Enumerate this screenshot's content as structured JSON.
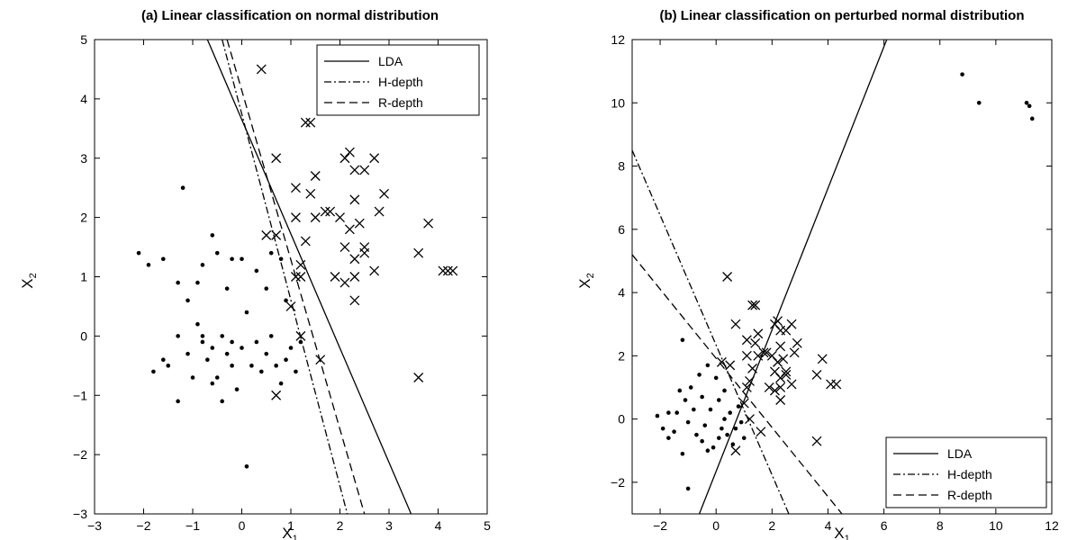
{
  "chart_data": [
    {
      "type": "scatter",
      "title": "(a) Linear classification on normal distribution",
      "xlabel": "X1",
      "ylabel": "X2",
      "xlim": [
        -3,
        5
      ],
      "ylim": [
        -3,
        5
      ],
      "xticks": [
        -3,
        -2,
        -1,
        0,
        1,
        2,
        3,
        4,
        5
      ],
      "yticks": [
        -3,
        -2,
        -1,
        0,
        1,
        2,
        3,
        4,
        5
      ],
      "legend_position": "top-right",
      "legend": [
        "LDA",
        "H-depth",
        "R-depth"
      ],
      "series": [
        {
          "marker": "dot",
          "points": [
            [
              -2.1,
              1.4
            ],
            [
              -1.9,
              1.2
            ],
            [
              -1.6,
              1.3
            ],
            [
              -1.2,
              2.5
            ],
            [
              -1.3,
              0.9
            ],
            [
              -1.1,
              0.6
            ],
            [
              -0.9,
              0.9
            ],
            [
              -0.8,
              1.2
            ],
            [
              -0.6,
              1.7
            ],
            [
              -0.5,
              1.4
            ],
            [
              -0.3,
              0.8
            ],
            [
              -0.2,
              1.3
            ],
            [
              0.0,
              1.3
            ],
            [
              -1.8,
              -0.6
            ],
            [
              -1.6,
              -0.4
            ],
            [
              -1.5,
              -0.5
            ],
            [
              -1.3,
              0.0
            ],
            [
              -1.1,
              -0.3
            ],
            [
              -0.9,
              0.2
            ],
            [
              -0.8,
              -0.1
            ],
            [
              -0.7,
              -0.4
            ],
            [
              -0.6,
              -0.2
            ],
            [
              -0.5,
              -0.7
            ],
            [
              -0.4,
              0.0
            ],
            [
              -0.3,
              -0.3
            ],
            [
              -0.2,
              -0.1
            ],
            [
              0.0,
              -0.2
            ],
            [
              0.1,
              0.4
            ],
            [
              0.2,
              -0.5
            ],
            [
              0.3,
              -0.1
            ],
            [
              0.4,
              -0.6
            ],
            [
              0.5,
              -0.3
            ],
            [
              0.6,
              0.0
            ],
            [
              0.7,
              -0.5
            ],
            [
              0.8,
              -0.8
            ],
            [
              0.9,
              -0.4
            ],
            [
              1.0,
              -0.2
            ],
            [
              -1.3,
              -1.1
            ],
            [
              -1.0,
              -0.7
            ],
            [
              -0.4,
              -1.1
            ],
            [
              -0.2,
              -0.5
            ],
            [
              0.1,
              -2.2
            ],
            [
              0.3,
              1.1
            ],
            [
              0.5,
              0.8
            ],
            [
              0.6,
              1.4
            ],
            [
              0.8,
              1.3
            ],
            [
              0.9,
              0.6
            ],
            [
              1.1,
              -0.6
            ],
            [
              1.2,
              -0.1
            ],
            [
              -0.8,
              0.0
            ],
            [
              -0.6,
              -0.8
            ],
            [
              -0.1,
              -0.9
            ]
          ]
        },
        {
          "marker": "x",
          "points": [
            [
              0.4,
              4.5
            ],
            [
              1.3,
              3.6
            ],
            [
              1.4,
              3.6
            ],
            [
              0.7,
              3.0
            ],
            [
              1.5,
              2.7
            ],
            [
              1.1,
              2.5
            ],
            [
              1.4,
              2.4
            ],
            [
              1.1,
              2.0
            ],
            [
              1.3,
              1.6
            ],
            [
              1.5,
              2.0
            ],
            [
              1.7,
              2.1
            ],
            [
              1.8,
              2.1
            ],
            [
              2.0,
              2.0
            ],
            [
              2.1,
              3.0
            ],
            [
              2.2,
              3.1
            ],
            [
              2.3,
              2.8
            ],
            [
              2.5,
              2.8
            ],
            [
              2.7,
              3.0
            ],
            [
              2.3,
              2.3
            ],
            [
              2.2,
              1.8
            ],
            [
              2.4,
              1.9
            ],
            [
              2.1,
              1.5
            ],
            [
              2.3,
              1.3
            ],
            [
              2.5,
              1.5
            ],
            [
              2.5,
              1.4
            ],
            [
              2.1,
              0.9
            ],
            [
              2.3,
              1.0
            ],
            [
              1.9,
              1.0
            ],
            [
              2.3,
              0.6
            ],
            [
              2.7,
              1.1
            ],
            [
              2.8,
              2.1
            ],
            [
              2.9,
              2.4
            ],
            [
              1.2,
              1.2
            ],
            [
              1.1,
              1.0
            ],
            [
              1.2,
              1.0
            ],
            [
              1.0,
              0.5
            ],
            [
              1.2,
              0.0
            ],
            [
              1.6,
              -0.4
            ],
            [
              0.7,
              -1.0
            ],
            [
              3.6,
              1.4
            ],
            [
              3.8,
              1.9
            ],
            [
              4.1,
              1.1
            ],
            [
              4.3,
              1.1
            ],
            [
              4.2,
              1.1
            ],
            [
              3.6,
              -0.7
            ],
            [
              0.5,
              1.7
            ],
            [
              0.7,
              1.7
            ]
          ]
        }
      ],
      "lines": [
        {
          "name": "LDA",
          "style": "solid",
          "from": [
            -0.7,
            5
          ],
          "to": [
            3.45,
            -3
          ]
        },
        {
          "name": "H-depth",
          "style": "dashdot",
          "from": [
            -0.4,
            5
          ],
          "to": [
            2.15,
            -3
          ]
        },
        {
          "name": "R-depth",
          "style": "dashed",
          "from": [
            -0.3,
            5
          ],
          "to": [
            2.5,
            -3
          ]
        }
      ]
    },
    {
      "type": "scatter",
      "title": "(b) Linear classification on perturbed normal distribution",
      "xlabel": "X1",
      "ylabel": "X2",
      "xlim": [
        -3,
        12
      ],
      "ylim": [
        -3,
        12
      ],
      "xticks": [
        -2,
        0,
        2,
        4,
        6,
        8,
        10,
        12
      ],
      "yticks": [
        -2,
        0,
        2,
        4,
        6,
        8,
        10,
        12
      ],
      "legend_position": "bottom-right",
      "legend": [
        "LDA",
        "H-depth",
        "R-depth"
      ],
      "series": [
        {
          "marker": "dot",
          "points": [
            [
              -2.1,
              0.1
            ],
            [
              -1.9,
              -0.3
            ],
            [
              -1.7,
              0.2
            ],
            [
              -1.5,
              -0.4
            ],
            [
              -1.3,
              0.9
            ],
            [
              -1.2,
              2.5
            ],
            [
              -1.1,
              0.6
            ],
            [
              -1.0,
              -0.1
            ],
            [
              -0.9,
              1.0
            ],
            [
              -0.8,
              0.3
            ],
            [
              -0.7,
              -0.5
            ],
            [
              -0.6,
              1.4
            ],
            [
              -0.5,
              0.7
            ],
            [
              -0.4,
              -0.2
            ],
            [
              -0.3,
              1.7
            ],
            [
              -0.2,
              0.3
            ],
            [
              -0.1,
              -0.9
            ],
            [
              0.0,
              1.3
            ],
            [
              0.1,
              0.6
            ],
            [
              0.2,
              -0.3
            ],
            [
              0.3,
              0.9
            ],
            [
              0.4,
              -0.5
            ],
            [
              0.5,
              0.2
            ],
            [
              0.6,
              -0.8
            ],
            [
              0.7,
              -0.3
            ],
            [
              0.8,
              0.4
            ],
            [
              0.9,
              -0.1
            ],
            [
              1.0,
              -0.6
            ],
            [
              -1.2,
              -1.1
            ],
            [
              -1.0,
              -2.2
            ],
            [
              -0.3,
              -1.0
            ],
            [
              -0.5,
              -0.7
            ],
            [
              0.1,
              -0.6
            ],
            [
              0.3,
              0.0
            ],
            [
              -1.7,
              -0.6
            ],
            [
              -1.4,
              0.2
            ],
            [
              8.8,
              10.9
            ],
            [
              9.4,
              10.0
            ],
            [
              11.1,
              10.0
            ],
            [
              11.2,
              9.9
            ],
            [
              11.3,
              9.5
            ]
          ]
        },
        {
          "marker": "x",
          "points": [
            [
              0.4,
              4.5
            ],
            [
              1.3,
              3.6
            ],
            [
              1.4,
              3.6
            ],
            [
              0.7,
              3.0
            ],
            [
              1.5,
              2.7
            ],
            [
              1.1,
              2.5
            ],
            [
              1.4,
              2.4
            ],
            [
              1.1,
              2.0
            ],
            [
              1.3,
              1.6
            ],
            [
              1.5,
              2.0
            ],
            [
              1.7,
              2.1
            ],
            [
              1.8,
              2.1
            ],
            [
              2.0,
              2.0
            ],
            [
              2.1,
              3.0
            ],
            [
              2.2,
              3.1
            ],
            [
              2.3,
              2.8
            ],
            [
              2.5,
              2.8
            ],
            [
              2.7,
              3.0
            ],
            [
              2.3,
              2.3
            ],
            [
              2.2,
              1.8
            ],
            [
              2.4,
              1.9
            ],
            [
              2.1,
              1.5
            ],
            [
              2.3,
              1.3
            ],
            [
              2.5,
              1.5
            ],
            [
              2.5,
              1.4
            ],
            [
              2.1,
              0.9
            ],
            [
              2.3,
              1.0
            ],
            [
              1.9,
              1.0
            ],
            [
              2.3,
              0.6
            ],
            [
              2.7,
              1.1
            ],
            [
              2.8,
              2.1
            ],
            [
              2.9,
              2.4
            ],
            [
              1.2,
              1.2
            ],
            [
              1.1,
              1.0
            ],
            [
              1.0,
              0.5
            ],
            [
              1.2,
              0.0
            ],
            [
              1.6,
              -0.4
            ],
            [
              0.7,
              -1.0
            ],
            [
              3.6,
              1.4
            ],
            [
              3.8,
              1.9
            ],
            [
              4.1,
              1.1
            ],
            [
              4.3,
              1.1
            ],
            [
              3.6,
              -0.7
            ],
            [
              0.5,
              1.7
            ],
            [
              0.2,
              1.8
            ]
          ]
        }
      ],
      "lines": [
        {
          "name": "LDA",
          "style": "solid",
          "from": [
            -0.6,
            -3
          ],
          "to": [
            6.1,
            12
          ]
        },
        {
          "name": "H-depth",
          "style": "dashdot",
          "from": [
            -3,
            8.5
          ],
          "to": [
            2.6,
            -3
          ]
        },
        {
          "name": "R-depth",
          "style": "dashed",
          "from": [
            -3,
            5.2
          ],
          "to": [
            4.5,
            -3
          ]
        }
      ]
    }
  ]
}
